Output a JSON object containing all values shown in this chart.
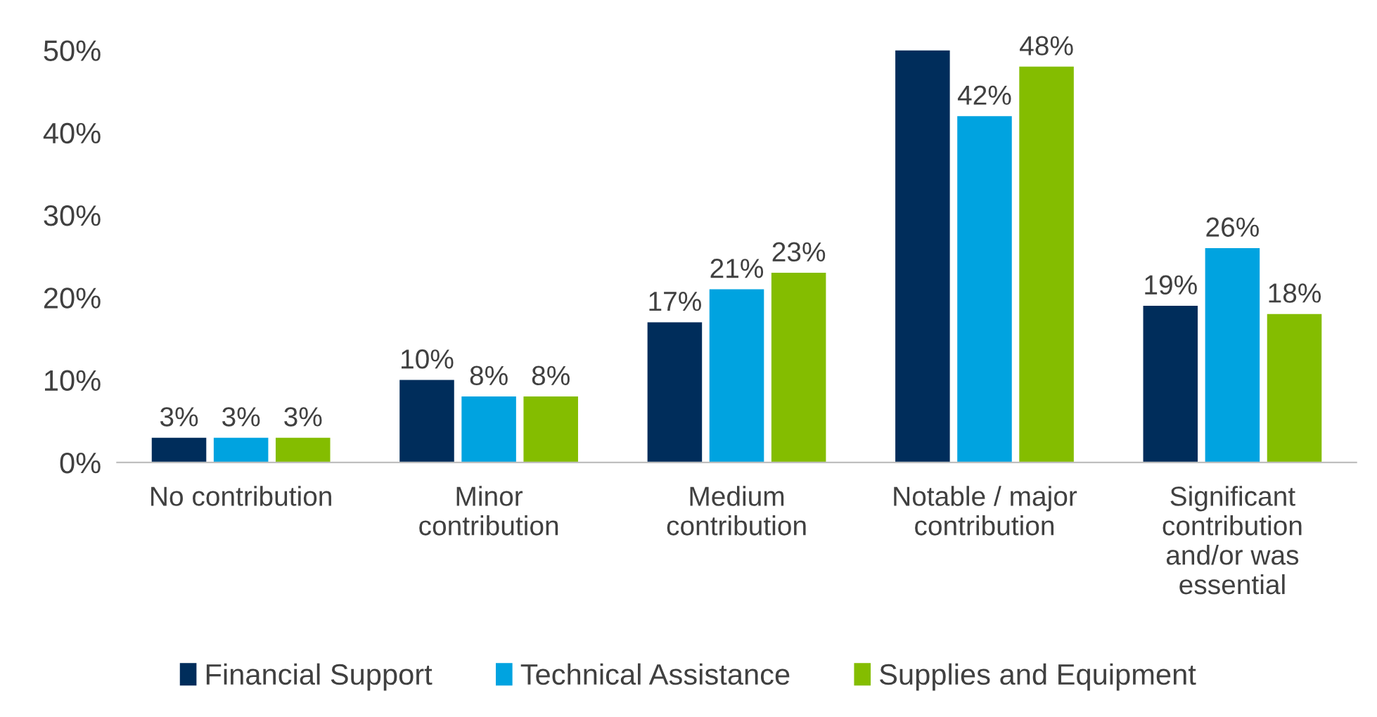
{
  "chart_data": {
    "type": "bar",
    "categories": [
      "No contribution",
      "Minor\ncontribution",
      "Medium\ncontribution",
      "Notable / major\ncontribution",
      "Significant\ncontribution\nand/or was\nessential"
    ],
    "series": [
      {
        "name": "Financial Support",
        "color": "#002d5b",
        "values": [
          3,
          10,
          17,
          50,
          19
        ],
        "value_labels": [
          "3%",
          "10%",
          "17%",
          null,
          "19%"
        ]
      },
      {
        "name": "Technical Assistance",
        "color": "#00a3e0",
        "values": [
          3,
          8,
          21,
          42,
          26
        ],
        "value_labels": [
          "3%",
          "8%",
          "21%",
          "42%",
          "26%"
        ]
      },
      {
        "name": "Supplies and Equipment",
        "color": "#84bd00",
        "values": [
          3,
          8,
          23,
          48,
          18
        ],
        "value_labels": [
          "3%",
          "8%",
          "23%",
          "48%",
          "18%"
        ]
      }
    ],
    "ylim": [
      0,
      50
    ],
    "yticks": [
      {
        "value": 0,
        "label": "0%"
      },
      {
        "value": 10,
        "label": "10%"
      },
      {
        "value": 20,
        "label": "20%"
      },
      {
        "value": 30,
        "label": "30%"
      },
      {
        "value": 40,
        "label": "40%"
      },
      {
        "value": 50,
        "label": "50%"
      }
    ],
    "legend": "bottom",
    "grid": false
  }
}
